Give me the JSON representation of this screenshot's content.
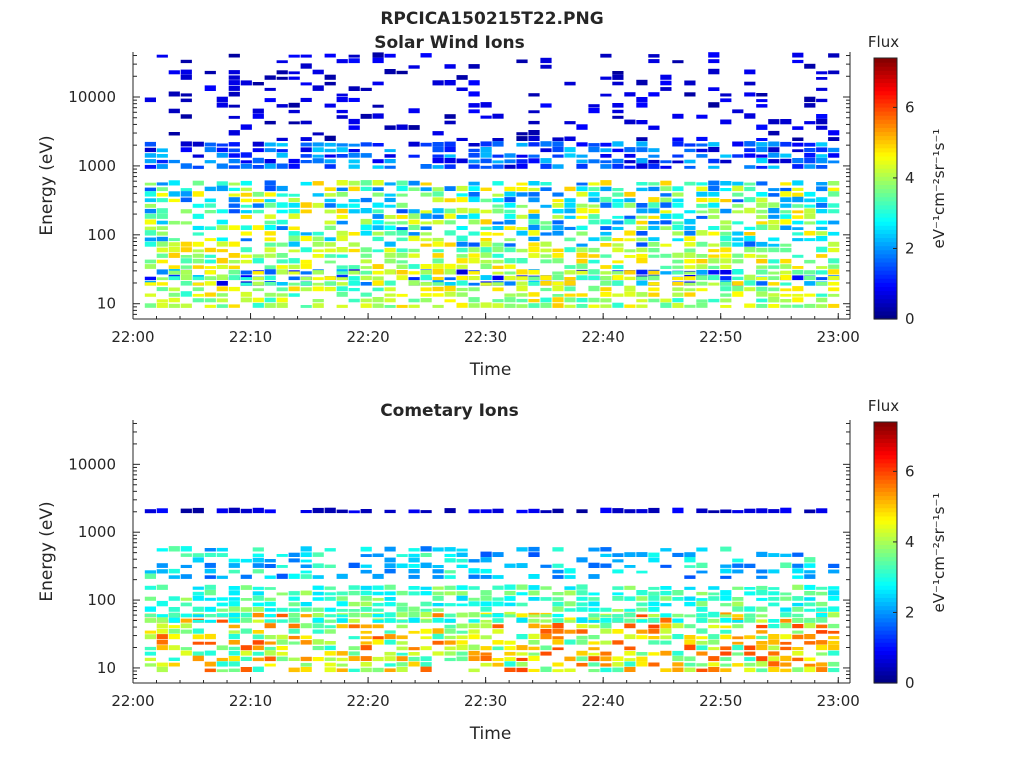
{
  "figure": {
    "title": "RPCICA150215T22.PNG"
  },
  "colorbar": {
    "label": "Flux",
    "unit_html": "eV⁻¹cm⁻²sr⁻¹s⁻¹",
    "range": [
      0,
      7.4
    ],
    "ticks": [
      "0",
      "2",
      "4",
      "6"
    ],
    "colormap": "jet"
  },
  "chart_data": [
    {
      "type": "heatmap",
      "title": "Solar Wind Ions",
      "xlabel": "Time",
      "ylabel": "Energy (eV)",
      "xlim": [
        "22:00",
        "23:01"
      ],
      "ylim": [
        6,
        45000
      ],
      "yscale": "log",
      "xticks": [
        "22:00",
        "22:10",
        "22:20",
        "22:30",
        "22:40",
        "22:50",
        "23:00"
      ],
      "yticks": [
        "10",
        "100",
        "1000",
        "10000"
      ],
      "colorbar_label": "Flux",
      "colorbar_range": [
        0,
        7.4
      ],
      "bands": [
        {
          "energy_range": [
            18,
            30
          ],
          "flux_range": [
            0.5,
            2.5
          ],
          "note": "persistent low-energy band"
        },
        {
          "energy_range": [
            8,
            60
          ],
          "flux_range": [
            3,
            5
          ],
          "note": "low-energy bursts"
        },
        {
          "energy_range": [
            60,
            600
          ],
          "flux_range": [
            1.5,
            5
          ],
          "note": "mid-energy population"
        },
        {
          "energy_range": [
            800,
            2000
          ],
          "flux_range": [
            0.5,
            2.5
          ],
          "note": "high-energy band"
        },
        {
          "energy_range": [
            2000,
            40000
          ],
          "flux_range": [
            0.2,
            1
          ],
          "note": "sparse background"
        }
      ]
    },
    {
      "type": "heatmap",
      "title": "Cometary Ions",
      "xlabel": "Time",
      "ylabel": "Energy (eV)",
      "xlim": [
        "22:00",
        "23:01"
      ],
      "ylim": [
        6,
        45000
      ],
      "yscale": "log",
      "xticks": [
        "22:00",
        "22:10",
        "22:20",
        "22:30",
        "22:40",
        "22:50",
        "23:00"
      ],
      "yticks": [
        "10",
        "100",
        "1000",
        "10000"
      ],
      "colorbar_label": "Flux",
      "colorbar_range": [
        0,
        7.4
      ],
      "bands": [
        {
          "energy_range": [
            8,
            60
          ],
          "flux_range": [
            3,
            6
          ],
          "note": "dense low-energy population"
        },
        {
          "energy_range": [
            40,
            150
          ],
          "flux_range": [
            2.5,
            4
          ],
          "note": "continuous mid band"
        },
        {
          "energy_range": [
            200,
            600
          ],
          "flux_range": [
            1.5,
            3.5
          ],
          "note": "intermittent"
        },
        {
          "energy_range": [
            1600,
            2000
          ],
          "flux_range": [
            0.2,
            1
          ],
          "note": "thin high-energy band"
        }
      ]
    }
  ]
}
